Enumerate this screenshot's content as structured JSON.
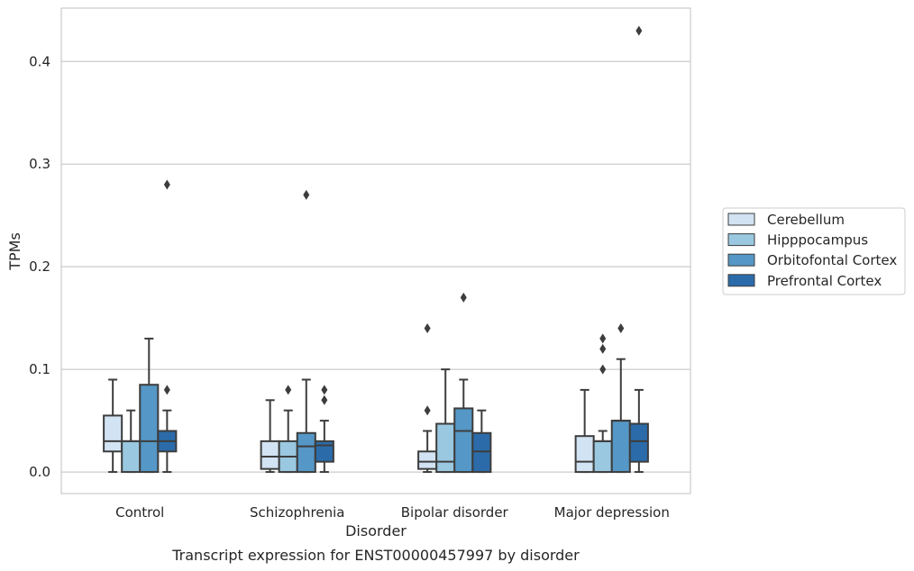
{
  "chart_data": {
    "type": "box",
    "title": "Transcript expression for ENST00000457997 by disorder",
    "xlabel": "Disorder",
    "ylabel": "TPMs",
    "ylim": [
      -0.021,
      0.452
    ],
    "yticks": [
      0.0,
      0.1,
      0.2,
      0.3,
      0.4
    ],
    "ytick_labels": [
      "0.0",
      "0.1",
      "0.2",
      "0.3",
      "0.4"
    ],
    "grid": "horizontal",
    "legend_position": "center-right",
    "categories": [
      "Control",
      "Schizophrenia",
      "Bipolar disorder",
      "Major depression"
    ],
    "series": [
      {
        "name": "Cerebellum",
        "color": "#d2e3f3",
        "boxes": [
          {
            "whisker_low": 0.0,
            "q1": 0.02,
            "median": 0.03,
            "q3": 0.055,
            "whisker_high": 0.09,
            "outliers": []
          },
          {
            "whisker_low": 0.0,
            "q1": 0.003,
            "median": 0.015,
            "q3": 0.03,
            "whisker_high": 0.07,
            "outliers": []
          },
          {
            "whisker_low": 0.0,
            "q1": 0.003,
            "median": 0.01,
            "q3": 0.02,
            "whisker_high": 0.04,
            "outliers": [
              0.06,
              0.14
            ]
          },
          {
            "whisker_low": 0.0,
            "q1": 0.0,
            "median": 0.01,
            "q3": 0.035,
            "whisker_high": 0.08,
            "outliers": []
          }
        ]
      },
      {
        "name": "Hipppocampus",
        "color": "#9ac8e0",
        "boxes": [
          {
            "whisker_low": 0.0,
            "q1": 0.0,
            "median": 0.03,
            "q3": 0.03,
            "whisker_high": 0.06,
            "outliers": []
          },
          {
            "whisker_low": 0.0,
            "q1": 0.0,
            "median": 0.015,
            "q3": 0.03,
            "whisker_high": 0.06,
            "outliers": [
              0.08
            ]
          },
          {
            "whisker_low": 0.0,
            "q1": 0.0,
            "median": 0.01,
            "q3": 0.047,
            "whisker_high": 0.1,
            "outliers": []
          },
          {
            "whisker_low": 0.0,
            "q1": 0.0,
            "median": 0.03,
            "q3": 0.03,
            "whisker_high": 0.04,
            "outliers": [
              0.1,
              0.12,
              0.13
            ]
          }
        ]
      },
      {
        "name": "Orbitofontal Cortex",
        "color": "#5597c6",
        "boxes": [
          {
            "whisker_low": 0.0,
            "q1": 0.0,
            "median": 0.03,
            "q3": 0.085,
            "whisker_high": 0.13,
            "outliers": []
          },
          {
            "whisker_low": 0.0,
            "q1": 0.0,
            "median": 0.025,
            "q3": 0.038,
            "whisker_high": 0.09,
            "outliers": [
              0.27
            ]
          },
          {
            "whisker_low": 0.0,
            "q1": 0.0,
            "median": 0.04,
            "q3": 0.062,
            "whisker_high": 0.09,
            "outliers": [
              0.17
            ]
          },
          {
            "whisker_low": 0.0,
            "q1": 0.0,
            "median": 0.05,
            "q3": 0.05,
            "whisker_high": 0.11,
            "outliers": [
              0.14
            ]
          }
        ]
      },
      {
        "name": "Prefrontal Cortex",
        "color": "#2b6ba9",
        "boxes": [
          {
            "whisker_low": 0.0,
            "q1": 0.02,
            "median": 0.03,
            "q3": 0.04,
            "whisker_high": 0.06,
            "outliers": [
              0.08,
              0.28
            ]
          },
          {
            "whisker_low": 0.0,
            "q1": 0.01,
            "median": 0.026,
            "q3": 0.03,
            "whisker_high": 0.05,
            "outliers": [
              0.07,
              0.08
            ]
          },
          {
            "whisker_low": 0.0,
            "q1": 0.0,
            "median": 0.02,
            "q3": 0.038,
            "whisker_high": 0.06,
            "outliers": []
          },
          {
            "whisker_low": 0.0,
            "q1": 0.01,
            "median": 0.03,
            "q3": 0.047,
            "whisker_high": 0.08,
            "outliers": [
              0.43
            ]
          }
        ]
      }
    ]
  }
}
